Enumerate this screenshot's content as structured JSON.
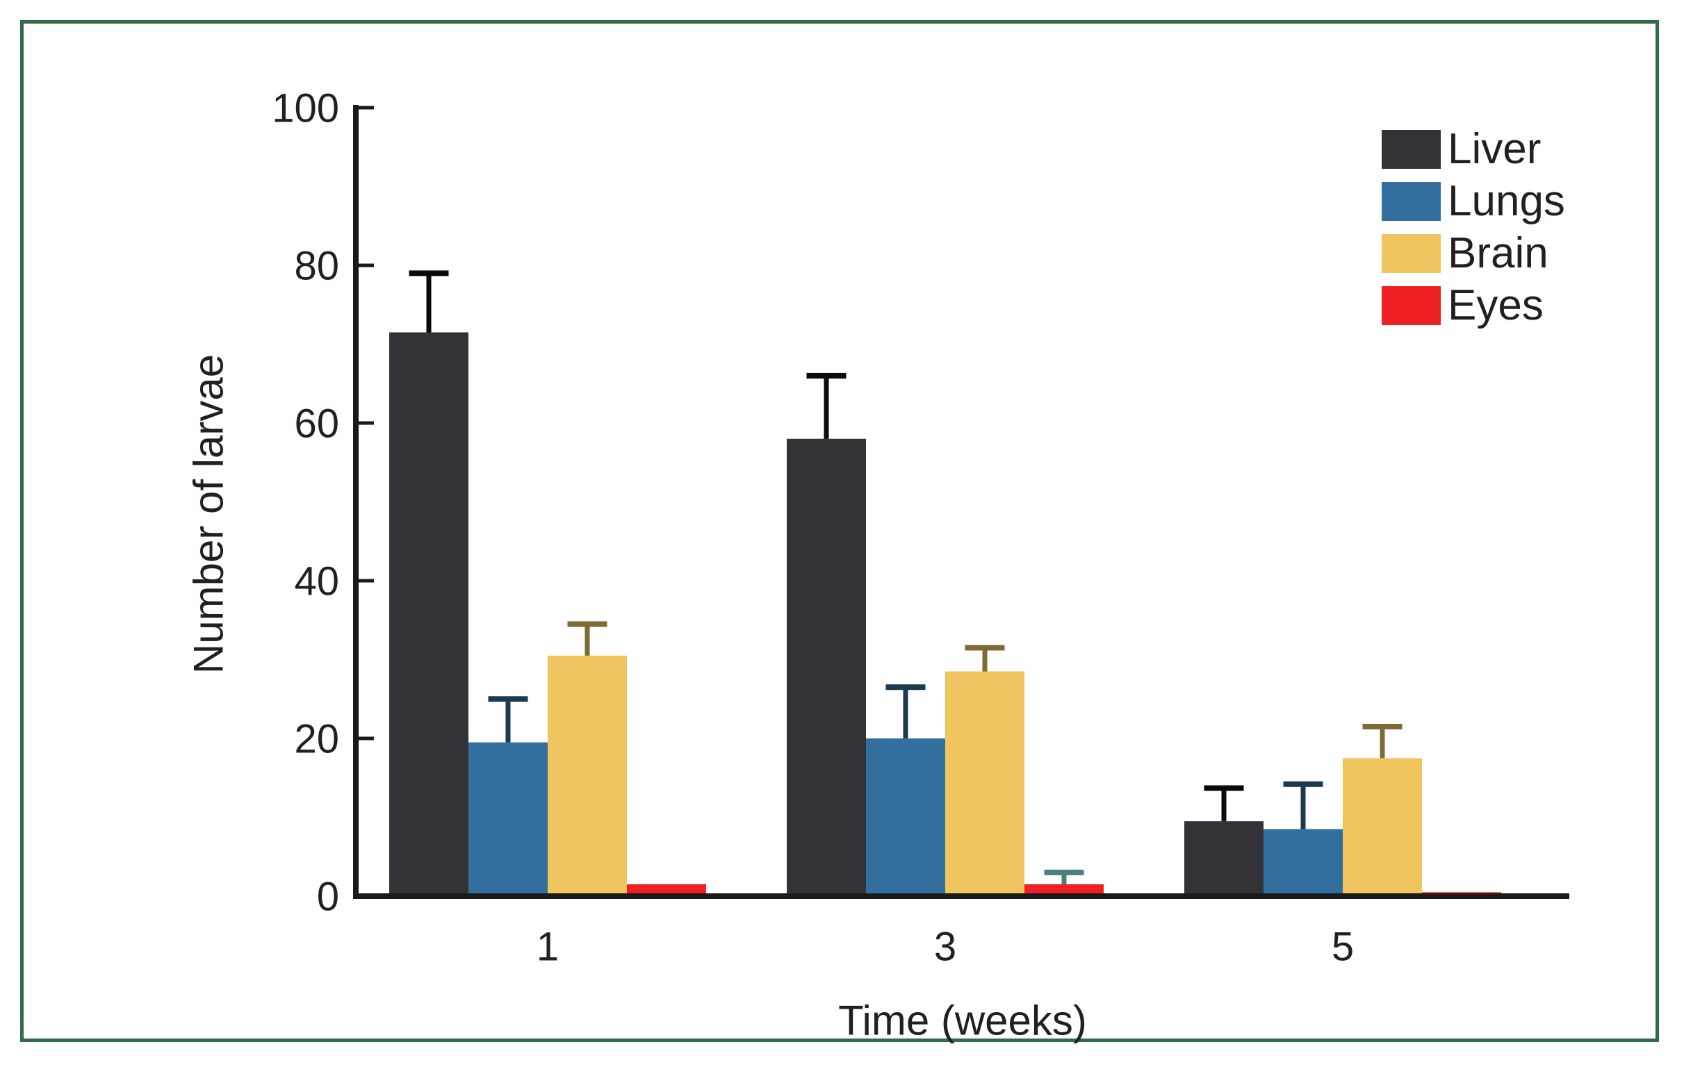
{
  "figure": {
    "border_color": "#336b44",
    "background": "#ffffff"
  },
  "chart_data": {
    "type": "bar",
    "title": "",
    "xlabel": "Time (weeks)",
    "ylabel": "Number of larvae",
    "categories": [
      "1",
      "3",
      "5"
    ],
    "series": [
      {
        "name": "Liver",
        "color": "#333237",
        "error_color": "#0a0a0a",
        "values": [
          71.5,
          58,
          9.5
        ],
        "errors_plus": [
          7.5,
          8,
          4.2
        ]
      },
      {
        "name": "Lungs",
        "color": "#336f9e",
        "error_color": "#1c3a4e",
        "values": [
          19.5,
          20,
          8.5
        ],
        "errors_plus": [
          5.5,
          6.5,
          5.7
        ]
      },
      {
        "name": "Brain",
        "color": "#f0c45f",
        "error_color": "#7d6a35",
        "values": [
          30.5,
          28.5,
          17.5
        ],
        "errors_plus": [
          4,
          3,
          4
        ]
      },
      {
        "name": "Eyes",
        "color": "#ee2024",
        "error_color": "#4f7f7c",
        "values": [
          1.5,
          1.5,
          0.5
        ],
        "errors_plus": [
          0,
          1.5,
          0
        ]
      }
    ],
    "ylim": [
      0,
      100
    ],
    "yticks": [
      0,
      20,
      40,
      60,
      80,
      100
    ],
    "grid": false,
    "legend_position": "upper-right",
    "axis_color": "#1a1a1a",
    "text_color": "#231f20"
  }
}
